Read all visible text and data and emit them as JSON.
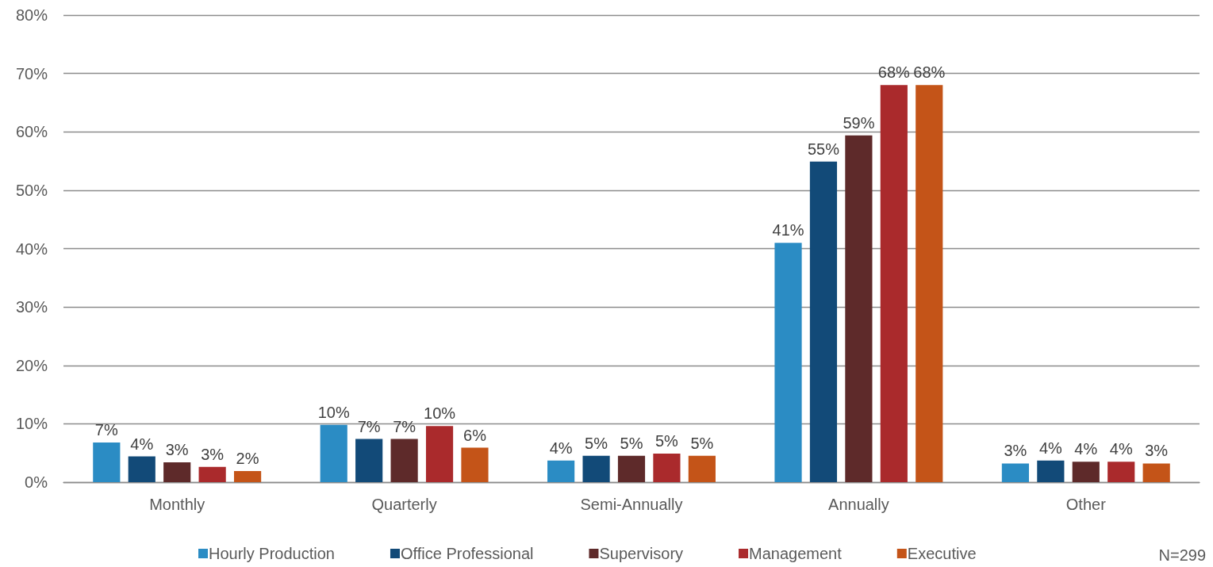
{
  "chart_data": {
    "type": "bar",
    "categories": [
      "Monthly",
      "Quarterly",
      "Semi-Annually",
      "Annually",
      "Other"
    ],
    "series": [
      {
        "name": "Hourly Production",
        "color": "#2b8cc4",
        "values": [
          6.8,
          9.8,
          3.7,
          41.0,
          3.2
        ],
        "value_labels": [
          "7%",
          "10%",
          "4%",
          "41%",
          "3%"
        ]
      },
      {
        "name": "Office Professional",
        "color": "#124a78",
        "values": [
          4.4,
          7.4,
          4.5,
          54.9,
          3.7
        ],
        "value_labels": [
          "4%",
          "7%",
          "5%",
          "55%",
          "4%"
        ]
      },
      {
        "name": "Supervisory",
        "color": "#5e2a2a",
        "values": [
          3.4,
          7.4,
          4.5,
          59.4,
          3.5
        ],
        "value_labels": [
          "3%",
          "7%",
          "5%",
          "59%",
          "4%"
        ]
      },
      {
        "name": "Management",
        "color": "#aa2a2c",
        "values": [
          2.6,
          9.6,
          4.9,
          68.0,
          3.5
        ],
        "value_labels": [
          "3%",
          "10%",
          "5%",
          "68%",
          "4%"
        ]
      },
      {
        "name": "Executive",
        "color": "#c45418",
        "values": [
          1.9,
          5.9,
          4.5,
          68.0,
          3.2
        ],
        "value_labels": [
          "2%",
          "6%",
          "5%",
          "68%",
          "3%"
        ]
      }
    ],
    "ylim": [
      0,
      80
    ],
    "yticks": [
      {
        "value": 0,
        "label": "0%"
      },
      {
        "value": 10,
        "label": "10%"
      },
      {
        "value": 20,
        "label": "20%"
      },
      {
        "value": 30,
        "label": "30%"
      },
      {
        "value": 40,
        "label": "40%"
      },
      {
        "value": 50,
        "label": "50%"
      },
      {
        "value": 60,
        "label": "60%"
      },
      {
        "value": 70,
        "label": "70%"
      },
      {
        "value": 80,
        "label": "80%"
      }
    ],
    "grid": "y",
    "legend": "bottom",
    "annotations": [
      "N=299"
    ]
  }
}
